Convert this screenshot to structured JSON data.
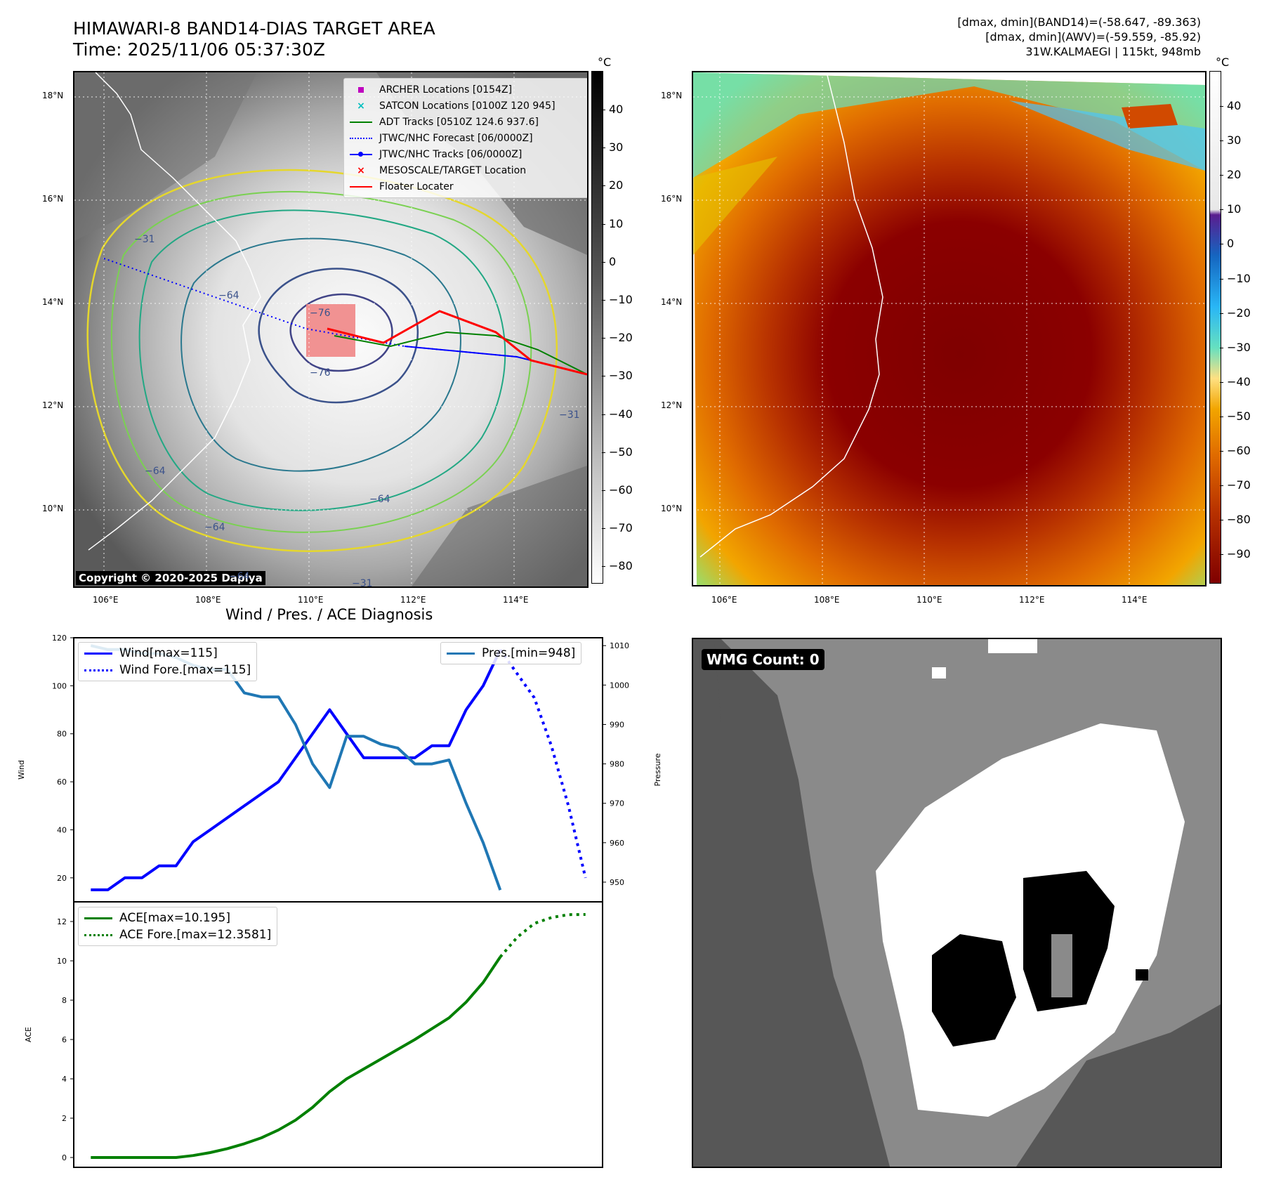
{
  "header": {
    "title": "HIMAWARI-8 BAND14-DIAS TARGET AREA",
    "time": "Time: 2025/11/06 05:37:30Z",
    "stats_band14": "[dmax, dmin](BAND14)=(-58.647, -89.363)",
    "stats_awv": "[dmax, dmin](AWV)=(-59.559, -85.92)",
    "storm": "31W.KALMAEGI | 115kt, 948mb"
  },
  "map_axes": {
    "lon_labels": [
      "106°E",
      "108°E",
      "110°E",
      "112°E",
      "114°E"
    ],
    "lat_labels": [
      "18°N",
      "16°N",
      "14°N",
      "12°N",
      "10°N"
    ]
  },
  "ir_panel": {
    "copyright": "Copyright © 2020-2025 Dapiya",
    "colorbar_unit": "°C",
    "colorbar_ticks": [
      "40",
      "30",
      "20",
      "10",
      "0",
      "−10",
      "−20",
      "−30",
      "−40",
      "−50",
      "−60",
      "−70",
      "−80"
    ],
    "contour_labels": [
      "−76",
      "−76",
      "−64",
      "−64",
      "−64",
      "−31",
      "−31",
      "−64",
      "−31",
      "−64"
    ],
    "legend": [
      {
        "label": "ARCHER Locations [0154Z]",
        "marker": "square",
        "color": "#bf00bf"
      },
      {
        "label": "SATCON Locations [0100Z 120 945]",
        "marker": "x",
        "color": "#00bfbf"
      },
      {
        "label": "ADT Tracks [0510Z 124.6 937.6]",
        "marker": "line",
        "color": "#008000"
      },
      {
        "label": "JTWC/NHC Forecast [06/0000Z]",
        "marker": "dotted",
        "color": "#0000ff"
      },
      {
        "label": "JTWC/NHC Tracks [06/0000Z]",
        "marker": "line-dot",
        "color": "#0000ff"
      },
      {
        "label": "MESOSCALE/TARGET Location",
        "marker": "x",
        "color": "#ff0000"
      },
      {
        "label": "Floater Locater",
        "marker": "line",
        "color": "#ff0000"
      }
    ]
  },
  "awv_panel": {
    "colorbar_unit": "°C",
    "colorbar_ticks": [
      "40",
      "30",
      "20",
      "10",
      "0",
      "−10",
      "−20",
      "−30",
      "−40",
      "−50",
      "−60",
      "−70",
      "−80",
      "−90"
    ]
  },
  "wmg_panel": {
    "badge": "WMG Count: 0"
  },
  "chart_data": [
    {
      "type": "line",
      "title": "Wind / Pres. / ACE Diagnosis",
      "ylabel": "Wind",
      "ylabel_right": "Pressure",
      "ylim": [
        10,
        120
      ],
      "ylim_right": [
        945,
        1012
      ],
      "yticks": [
        20,
        40,
        60,
        80,
        100,
        120
      ],
      "yticks_right": [
        950,
        960,
        970,
        980,
        990,
        1000,
        1010
      ],
      "series": [
        {
          "name": "Wind[max=115]",
          "axis": "left",
          "style": "solid",
          "color": "#0000ff",
          "x": [
            0,
            1,
            2,
            3,
            4,
            5,
            6,
            7,
            8,
            9,
            10,
            11,
            12,
            13,
            14,
            15,
            16,
            17,
            18,
            19,
            20,
            21,
            22,
            23,
            24
          ],
          "values": [
            15,
            15,
            20,
            20,
            25,
            25,
            35,
            40,
            45,
            50,
            55,
            60,
            70,
            80,
            90,
            80,
            70,
            70,
            70,
            70,
            75,
            75,
            90,
            100,
            115
          ]
        },
        {
          "name": "Wind Fore.[max=115]",
          "axis": "left",
          "style": "dotted",
          "color": "#0000ff",
          "x": [
            24,
            25,
            26,
            27,
            28,
            29
          ],
          "values": [
            115,
            105,
            95,
            75,
            50,
            20
          ]
        },
        {
          "name": "Pres.[min=948]",
          "axis": "right",
          "style": "solid",
          "color": "#1f77b4",
          "x": [
            0,
            1,
            2,
            3,
            4,
            5,
            6,
            7,
            8,
            9,
            10,
            11,
            12,
            13,
            14,
            15,
            16,
            17,
            18,
            19,
            20,
            21,
            22,
            23,
            24
          ],
          "values": [
            1010,
            1009,
            1009,
            1008,
            1008,
            1007,
            1005,
            1004,
            1004,
            998,
            997,
            997,
            990,
            980,
            974,
            987,
            987,
            985,
            984,
            980,
            980,
            981,
            970,
            960,
            948
          ]
        }
      ]
    },
    {
      "type": "line",
      "ylabel": "ACE",
      "ylim": [
        -0.5,
        13.0
      ],
      "yticks": [
        0,
        2,
        4,
        6,
        8,
        10,
        12
      ],
      "series": [
        {
          "name": "ACE[max=10.195]",
          "style": "solid",
          "color": "#008000",
          "x": [
            0,
            1,
            2,
            3,
            4,
            5,
            6,
            7,
            8,
            9,
            10,
            11,
            12,
            13,
            14,
            15,
            16,
            17,
            18,
            19,
            20,
            21,
            22,
            23,
            24
          ],
          "values": [
            0,
            0,
            0,
            0,
            0,
            0,
            0.1,
            0.25,
            0.45,
            0.7,
            1.0,
            1.4,
            1.9,
            2.55,
            3.35,
            4.0,
            4.5,
            5.0,
            5.5,
            6.0,
            6.55,
            7.1,
            7.9,
            8.9,
            10.195
          ]
        },
        {
          "name": "ACE Fore.[max=12.3581]",
          "style": "dotted",
          "color": "#008000",
          "x": [
            24,
            25,
            26,
            27,
            28,
            29
          ],
          "values": [
            10.195,
            11.2,
            11.9,
            12.2,
            12.35,
            12.3581
          ]
        }
      ]
    }
  ]
}
